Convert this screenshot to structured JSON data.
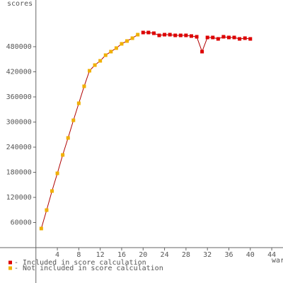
{
  "chart_data": {
    "type": "line",
    "ylabel": "scores",
    "xlabel": "war",
    "xlim": [
      -6.7,
      46.1
    ],
    "xticks": [
      4,
      8,
      12,
      16,
      20,
      24,
      28,
      32,
      36,
      40,
      44
    ],
    "ylim": [
      -84500,
      591500
    ],
    "yticks": [
      60000,
      120000,
      180000,
      240000,
      300000,
      360000,
      420000,
      480000
    ],
    "line_color": "#b00000",
    "series": [
      {
        "name": "- Included in score calculation",
        "color": "#dd0000",
        "x": [
          20,
          21,
          22,
          23,
          24,
          25,
          26,
          27,
          28,
          29,
          30,
          31,
          32,
          33,
          34,
          35,
          36,
          37,
          38,
          39,
          40
        ],
        "values": [
          513800,
          513800,
          512100,
          507000,
          508700,
          508700,
          507000,
          507000,
          507000,
          505400,
          503700,
          468200,
          502000,
          502000,
          498600,
          503700,
          502000,
          502000,
          498600,
          500300,
          498600
        ]
      },
      {
        "name": "- Not included in score calculation",
        "color": "#f0b000",
        "x": [
          1,
          2,
          3,
          4,
          5,
          6,
          7,
          8,
          9,
          10,
          11,
          12,
          13,
          14,
          15,
          16,
          17,
          18,
          19
        ],
        "values": [
          45600,
          89600,
          135200,
          177500,
          221400,
          262000,
          304200,
          344800,
          385400,
          422500,
          436000,
          446200,
          459700,
          468200,
          476600,
          486800,
          493500,
          500300,
          508700
        ]
      }
    ]
  }
}
